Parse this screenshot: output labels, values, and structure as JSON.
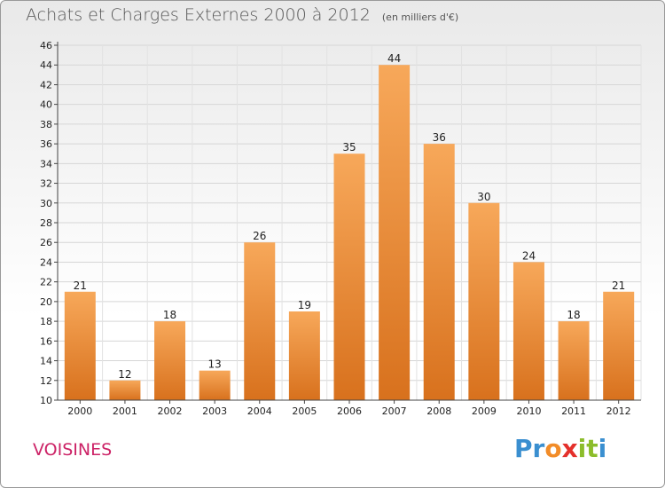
{
  "header": {
    "title": "Achats et Charges Externes 2000 à 2012",
    "unit": "(en milliers d'€)"
  },
  "footer": {
    "place": "VOISINES",
    "brand_letters": [
      {
        "ch": "P",
        "color": "#3a8fd0"
      },
      {
        "ch": "r",
        "color": "#3a8fd0"
      },
      {
        "ch": "o",
        "color": "#f28c28"
      },
      {
        "ch": "x",
        "color": "#e4302b"
      },
      {
        "ch": "i",
        "color": "#8cbd2b"
      },
      {
        "ch": "t",
        "color": "#8cbd2b"
      },
      {
        "ch": "i",
        "color": "#3a8fd0"
      }
    ]
  },
  "chart_data": {
    "type": "bar",
    "title": "Achats et Charges Externes 2000 à 2012",
    "categories": [
      "2000",
      "2001",
      "2002",
      "2003",
      "2004",
      "2005",
      "2006",
      "2007",
      "2008",
      "2009",
      "2010",
      "2011",
      "2012"
    ],
    "values": [
      21,
      12,
      18,
      13,
      26,
      19,
      35,
      44,
      36,
      30,
      24,
      18,
      21
    ],
    "ylim": [
      10,
      46
    ],
    "yticks": [
      10,
      12,
      14,
      16,
      18,
      20,
      22,
      24,
      26,
      28,
      30,
      32,
      34,
      36,
      38,
      40,
      42,
      44,
      46
    ],
    "grid": true,
    "bar_color": "#f28c28"
  }
}
